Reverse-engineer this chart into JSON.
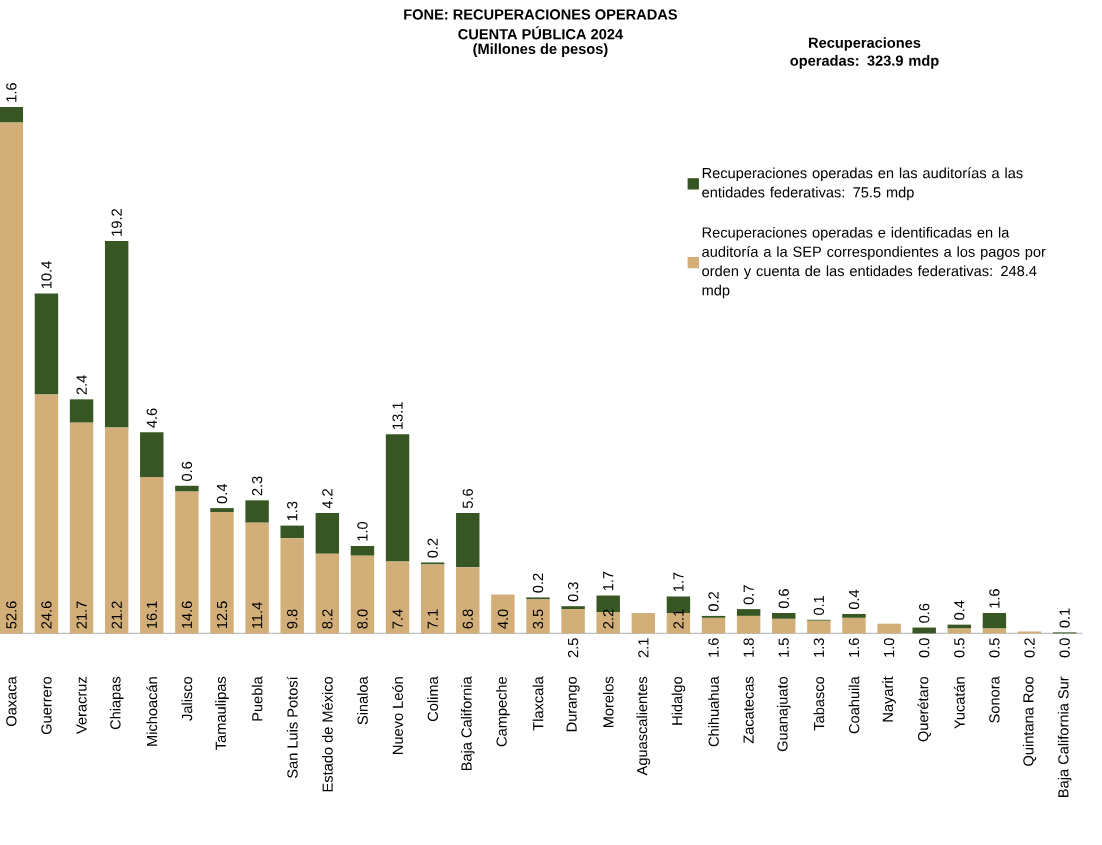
{
  "chart_data": {
    "type": "bar",
    "title": "FONE: RECUPERACIONES OPERADAS",
    "subtitle": "CUENTA PÚBLICA 2024",
    "annotations": [
      "(Millones de pesos)"
    ],
    "legend_title": "Recuperaciones operadas: 323.9 mdp",
    "categories": [
      "Oaxaca",
      "Guerrero",
      "Veracruz",
      "Chiapas",
      "Michoacán",
      "Jalisco",
      "Tamaulipas",
      "Puebla",
      "San Luis Potosí",
      "Estado de México",
      "Sinaloa",
      "Nuevo León",
      "Colima",
      "Baja California",
      "Campeche",
      "Tlaxcala",
      "Durango",
      "Morelos",
      "Aguascalientes",
      "Hidalgo",
      "Chihuahua",
      "Zacatecas",
      "Guanajuato",
      "Tabasco",
      "Coahuila",
      "Nayarit",
      "Querétaro",
      "Yucatán",
      "Sonora",
      "Quintana Roo",
      "Baja California Sur"
    ],
    "stacked": true,
    "legend": "top right",
    "series": [
      {
        "name": "Recuperaciones operadas e identificadas en la auditoría a la SEP correspondientes a los pagos por orden y cuenta de las entidades federativas: 248.4 mdp",
        "color": "#d2ae78",
        "values": [
          52.6,
          24.6,
          21.7,
          21.2,
          16.1,
          14.6,
          12.5,
          11.4,
          9.8,
          8.2,
          8.0,
          7.4,
          7.1,
          6.8,
          4.0,
          3.5,
          2.5,
          2.2,
          2.1,
          2.1,
          1.6,
          1.8,
          1.5,
          1.3,
          1.6,
          1.0,
          0.0,
          0.5,
          0.5,
          0.2,
          0.0
        ],
        "value_labels": [
          "52.6",
          "24.6",
          "21.7",
          "21.2",
          "16.1",
          "14.6",
          "12.5",
          "11.4",
          "9.8",
          "8.2",
          "8.0",
          "7.4",
          "7.1",
          "6.8",
          "4.0",
          "3.5",
          "2.5",
          "2.2",
          "2.1",
          "2.1",
          "1.6",
          "1.8",
          "1.5",
          "1.3",
          "1.6",
          "1.0",
          "0.0",
          "0.5",
          "0.5",
          "0.2",
          "0.0"
        ]
      },
      {
        "name": "Recuperaciones operadas en las auditorías a las entidades federativas: 75.5 mdp",
        "color": "#375623",
        "values": [
          1.6,
          10.4,
          2.4,
          19.2,
          4.6,
          0.6,
          0.4,
          2.3,
          1.3,
          4.2,
          1.0,
          13.1,
          0.2,
          5.6,
          null,
          0.2,
          0.3,
          1.7,
          null,
          1.7,
          0.2,
          0.7,
          0.6,
          0.1,
          0.4,
          null,
          0.6,
          0.4,
          1.6,
          null,
          0.1
        ],
        "value_labels": [
          "1.6",
          "10.4",
          "2.4",
          "19.2",
          "4.6",
          "0.6",
          "0.4",
          "2.3",
          "1.3",
          "4.2",
          "1.0",
          "13.1",
          "0.2",
          "5.6",
          null,
          "0.2",
          "0.3",
          "1.7",
          null,
          "1.7",
          "0.2",
          "0.7",
          "0.6",
          "0.1",
          "0.4",
          null,
          "0.6",
          "0.4",
          "1.6",
          null,
          "0.1"
        ]
      }
    ]
  }
}
